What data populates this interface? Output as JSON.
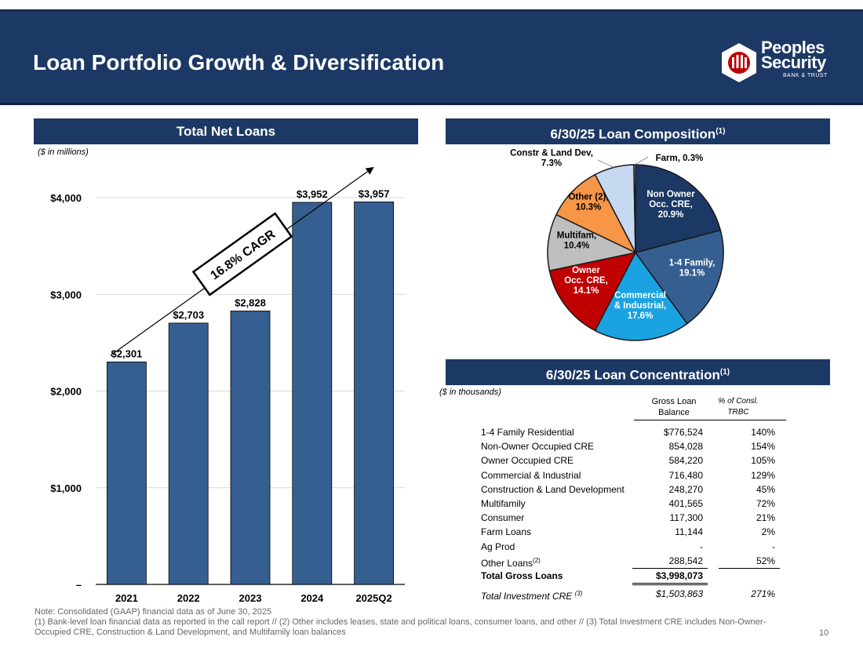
{
  "header": {
    "title": "Loan Portfolio Growth & Diversification"
  },
  "logo": {
    "line1": "Peoples",
    "line2": "Security",
    "sub": "BANK & TRUST"
  },
  "left_panel": {
    "title": "Total Net Loans",
    "unit_note": "($ in millions)",
    "cagr_label": "16.8% CAGR"
  },
  "right_top": {
    "title": "6/30/25 Loan Composition",
    "title_sup": "(1)"
  },
  "right_bottom": {
    "title": "6/30/25 Loan Concentration",
    "title_sup": "(1)",
    "unit_note": "($ in thousands)",
    "col_balance_1": "Gross Loan",
    "col_balance_2": "Balance",
    "col_pct_1": "% of Consl.",
    "col_pct_2": "TRBC",
    "rows": [
      {
        "label": "1-4 Family Residential",
        "balance": "$776,524",
        "pct": "140%"
      },
      {
        "label": "Non-Owner Occupied CRE",
        "balance": "854,028",
        "pct": "154%"
      },
      {
        "label": "Owner Occupied CRE",
        "balance": "584,220",
        "pct": "105%"
      },
      {
        "label": "Commercial & Industrial",
        "balance": "716,480",
        "pct": "129%"
      },
      {
        "label": "Construction & Land Development",
        "balance": "248,270",
        "pct": "45%"
      },
      {
        "label": "Multifamily",
        "balance": "401,565",
        "pct": "72%"
      },
      {
        "label": "Consumer",
        "balance": "117,300",
        "pct": "21%"
      },
      {
        "label": "Farm Loans",
        "balance": "11,144",
        "pct": "2%"
      },
      {
        "label": "Ag Prod",
        "balance": "-",
        "pct": "-"
      },
      {
        "label": "Other Loans",
        "label_sup": "(2)",
        "balance": "288,542",
        "pct": "52%"
      }
    ],
    "total": {
      "label": "Total Gross Loans",
      "balance": "$3,998,073"
    },
    "investment": {
      "label": "Total Investment CRE",
      "label_sup": "(3)",
      "balance": "$1,503,863",
      "pct": "271%"
    }
  },
  "footnote": {
    "line1": "Note: Consolidated (GAAP) financial data as of June 30, 2025",
    "line2": "(1) Bank-level loan financial data as reported in the call report // (2) Other includes leases, state and political loans, consumer loans, and other // (3) Total Investment CRE includes Non-Owner-Occupied CRE, Construction & Land Development, and Multifamily loan balances"
  },
  "page_number": "10",
  "colors": {
    "navy": "#1c3864",
    "bar": "#365f91"
  },
  "chart_data": [
    {
      "type": "bar",
      "title": "Total Net Loans",
      "ylabel": "($ in millions)",
      "categories": [
        "2021",
        "2022",
        "2023",
        "2024",
        "2025Q2"
      ],
      "values": [
        2301,
        2703,
        2828,
        3952,
        3957
      ],
      "value_labels": [
        "$2,301",
        "$2,703",
        "$2,828",
        "$3,952",
        "$3,957"
      ],
      "yticks": [
        0,
        1000,
        2000,
        3000,
        4000
      ],
      "ytick_labels": [
        "–",
        "$1,000",
        "$2,000",
        "$3,000",
        "$4,000"
      ],
      "ylim": [
        0,
        4000
      ],
      "annotation": "16.8% CAGR"
    },
    {
      "type": "pie",
      "title": "6/30/25 Loan Composition",
      "slices": [
        {
          "name": "Non Owner Occ. CRE",
          "value": 20.9,
          "label": "Non Owner\nOcc. CRE,\n20.9%",
          "color": "#1c3864",
          "text_color": "#ffffff",
          "outside": false
        },
        {
          "name": "1-4 Family",
          "value": 19.1,
          "label": "1-4 Family,\n19.1%",
          "color": "#365f91",
          "text_color": "#ffffff",
          "outside": false
        },
        {
          "name": "Commercial & Industrial",
          "value": 17.6,
          "label": "Commercial\n& Industrial,\n17.6%",
          "color": "#1aa3e0",
          "text_color": "#ffffff",
          "outside": false
        },
        {
          "name": "Owner Occ. CRE",
          "value": 14.1,
          "label": "Owner\nOcc. CRE,\n14.1%",
          "color": "#c00000",
          "text_color": "#ffffff",
          "outside": false
        },
        {
          "name": "Multifam",
          "value": 10.4,
          "label": "Multifam,\n10.4%",
          "color": "#bfbfbf",
          "text_color": "#000000",
          "outside": false
        },
        {
          "name": "Other (2)",
          "value": 10.3,
          "label": "Other (2),\n10.3%",
          "color": "#f79646",
          "text_color": "#000000",
          "outside": false
        },
        {
          "name": "Constr & Land Dev",
          "value": 7.3,
          "label": "Constr & Land Dev,\n7.3%",
          "color": "#c6d9f0",
          "text_color": "#000000",
          "outside": true
        },
        {
          "name": "Farm",
          "value": 0.3,
          "label": "Farm,  0.3%",
          "color": "#e6e6e6",
          "text_color": "#000000",
          "outside": true
        }
      ]
    }
  ]
}
